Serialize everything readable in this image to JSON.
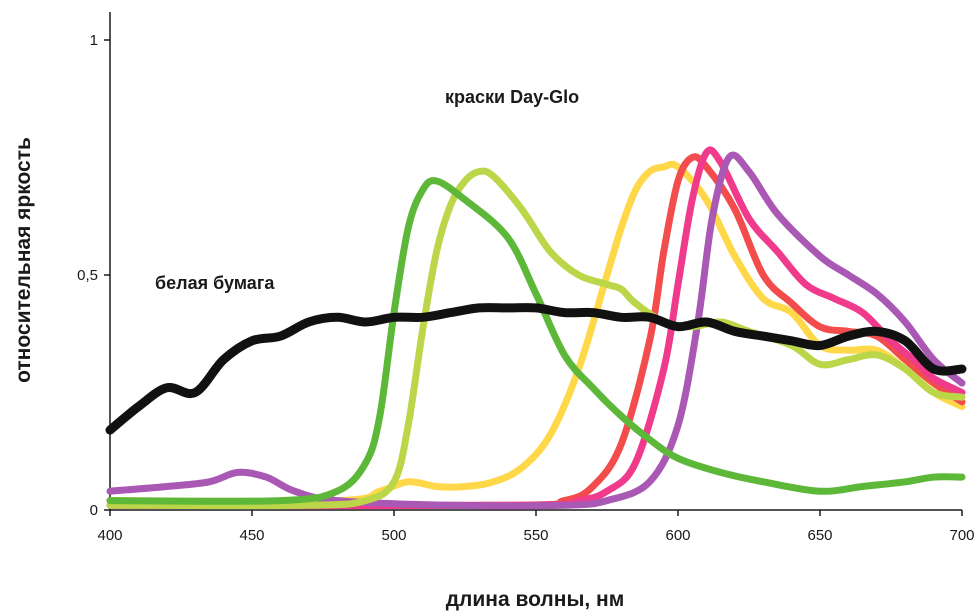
{
  "chart_data": {
    "type": "line",
    "title": "",
    "xlabel": "длина волны, нм",
    "ylabel": "относительная яркость",
    "xlim": [
      400,
      700
    ],
    "ylim": [
      0,
      1
    ],
    "x_ticks": [
      "400",
      "450",
      "500",
      "550",
      "600",
      "650",
      "700"
    ],
    "y_ticks": [
      {
        "value": 0,
        "label": "0"
      },
      {
        "value": 0.5,
        "label": "0,5"
      },
      {
        "value": 1,
        "label": "1"
      }
    ],
    "grid": false,
    "annotations": {
      "dayglo": "краски Day-Glo",
      "paper": "белая бумага"
    },
    "series": [
      {
        "color": "#ffd84a",
        "points": [
          [
            400,
            0.02
          ],
          [
            480,
            0.02
          ],
          [
            495,
            0.04
          ],
          [
            505,
            0.06
          ],
          [
            515,
            0.05
          ],
          [
            525,
            0.05
          ],
          [
            535,
            0.06
          ],
          [
            545,
            0.09
          ],
          [
            555,
            0.16
          ],
          [
            565,
            0.3
          ],
          [
            575,
            0.5
          ],
          [
            580,
            0.6
          ],
          [
            585,
            0.68
          ],
          [
            590,
            0.72
          ],
          [
            595,
            0.73
          ],
          [
            600,
            0.73
          ],
          [
            610,
            0.66
          ],
          [
            620,
            0.54
          ],
          [
            630,
            0.45
          ],
          [
            640,
            0.42
          ],
          [
            650,
            0.35
          ],
          [
            660,
            0.34
          ],
          [
            670,
            0.34
          ],
          [
            680,
            0.3
          ],
          [
            690,
            0.25
          ],
          [
            700,
            0.22
          ]
        ]
      },
      {
        "color": "#f24c4c",
        "points": [
          [
            400,
            0.01
          ],
          [
            540,
            0.01
          ],
          [
            560,
            0.02
          ],
          [
            570,
            0.05
          ],
          [
            580,
            0.14
          ],
          [
            590,
            0.36
          ],
          [
            595,
            0.55
          ],
          [
            600,
            0.7
          ],
          [
            605,
            0.75
          ],
          [
            610,
            0.73
          ],
          [
            620,
            0.64
          ],
          [
            630,
            0.5
          ],
          [
            640,
            0.44
          ],
          [
            650,
            0.39
          ],
          [
            660,
            0.38
          ],
          [
            670,
            0.37
          ],
          [
            680,
            0.32
          ],
          [
            690,
            0.27
          ],
          [
            700,
            0.23
          ]
        ]
      },
      {
        "color": "#f03a8c",
        "points": [
          [
            400,
            0.01
          ],
          [
            545,
            0.01
          ],
          [
            565,
            0.02
          ],
          [
            575,
            0.04
          ],
          [
            585,
            0.1
          ],
          [
            595,
            0.3
          ],
          [
            600,
            0.48
          ],
          [
            605,
            0.66
          ],
          [
            610,
            0.76
          ],
          [
            615,
            0.74
          ],
          [
            625,
            0.62
          ],
          [
            635,
            0.55
          ],
          [
            645,
            0.48
          ],
          [
            655,
            0.45
          ],
          [
            665,
            0.42
          ],
          [
            675,
            0.36
          ],
          [
            685,
            0.31
          ],
          [
            690,
            0.28
          ],
          [
            700,
            0.25
          ]
        ]
      },
      {
        "color": "#a958b4",
        "points": [
          [
            400,
            0.04
          ],
          [
            420,
            0.05
          ],
          [
            435,
            0.06
          ],
          [
            445,
            0.08
          ],
          [
            455,
            0.07
          ],
          [
            465,
            0.04
          ],
          [
            480,
            0.02
          ],
          [
            520,
            0.01
          ],
          [
            560,
            0.01
          ],
          [
            575,
            0.02
          ],
          [
            590,
            0.06
          ],
          [
            600,
            0.18
          ],
          [
            607,
            0.4
          ],
          [
            612,
            0.62
          ],
          [
            618,
            0.75
          ],
          [
            625,
            0.72
          ],
          [
            635,
            0.63
          ],
          [
            650,
            0.54
          ],
          [
            660,
            0.5
          ],
          [
            670,
            0.46
          ],
          [
            680,
            0.4
          ],
          [
            690,
            0.32
          ],
          [
            700,
            0.27
          ]
        ]
      },
      {
        "color": "#bcd64a",
        "points": [
          [
            400,
            0.01
          ],
          [
            470,
            0.01
          ],
          [
            490,
            0.02
          ],
          [
            500,
            0.06
          ],
          [
            505,
            0.18
          ],
          [
            510,
            0.38
          ],
          [
            515,
            0.55
          ],
          [
            520,
            0.65
          ],
          [
            525,
            0.7
          ],
          [
            530,
            0.72
          ],
          [
            535,
            0.71
          ],
          [
            545,
            0.64
          ],
          [
            555,
            0.55
          ],
          [
            565,
            0.5
          ],
          [
            575,
            0.48
          ],
          [
            580,
            0.47
          ],
          [
            585,
            0.44
          ],
          [
            595,
            0.4
          ],
          [
            605,
            0.39
          ],
          [
            615,
            0.4
          ],
          [
            625,
            0.38
          ],
          [
            640,
            0.35
          ],
          [
            650,
            0.31
          ],
          [
            660,
            0.32
          ],
          [
            670,
            0.33
          ],
          [
            680,
            0.3
          ],
          [
            690,
            0.25
          ],
          [
            700,
            0.24
          ]
        ]
      },
      {
        "color": "#5db83a",
        "points": [
          [
            400,
            0.02
          ],
          [
            460,
            0.02
          ],
          [
            480,
            0.04
          ],
          [
            490,
            0.1
          ],
          [
            495,
            0.2
          ],
          [
            500,
            0.42
          ],
          [
            505,
            0.6
          ],
          [
            510,
            0.68
          ],
          [
            515,
            0.7
          ],
          [
            525,
            0.66
          ],
          [
            540,
            0.58
          ],
          [
            550,
            0.46
          ],
          [
            560,
            0.33
          ],
          [
            570,
            0.26
          ],
          [
            580,
            0.2
          ],
          [
            590,
            0.15
          ],
          [
            600,
            0.11
          ],
          [
            615,
            0.08
          ],
          [
            630,
            0.06
          ],
          [
            650,
            0.04
          ],
          [
            665,
            0.05
          ],
          [
            680,
            0.06
          ],
          [
            690,
            0.07
          ],
          [
            700,
            0.07
          ]
        ]
      },
      {
        "color": "#111111",
        "points": [
          [
            400,
            0.17
          ],
          [
            410,
            0.22
          ],
          [
            420,
            0.26
          ],
          [
            430,
            0.25
          ],
          [
            440,
            0.32
          ],
          [
            450,
            0.36
          ],
          [
            460,
            0.37
          ],
          [
            470,
            0.4
          ],
          [
            480,
            0.41
          ],
          [
            490,
            0.4
          ],
          [
            500,
            0.41
          ],
          [
            510,
            0.41
          ],
          [
            520,
            0.42
          ],
          [
            530,
            0.43
          ],
          [
            540,
            0.43
          ],
          [
            550,
            0.43
          ],
          [
            560,
            0.42
          ],
          [
            570,
            0.42
          ],
          [
            580,
            0.41
          ],
          [
            590,
            0.41
          ],
          [
            600,
            0.39
          ],
          [
            610,
            0.4
          ],
          [
            620,
            0.38
          ],
          [
            630,
            0.37
          ],
          [
            640,
            0.36
          ],
          [
            650,
            0.35
          ],
          [
            660,
            0.37
          ],
          [
            670,
            0.38
          ],
          [
            680,
            0.36
          ],
          [
            690,
            0.3
          ],
          [
            700,
            0.3
          ]
        ]
      }
    ]
  }
}
